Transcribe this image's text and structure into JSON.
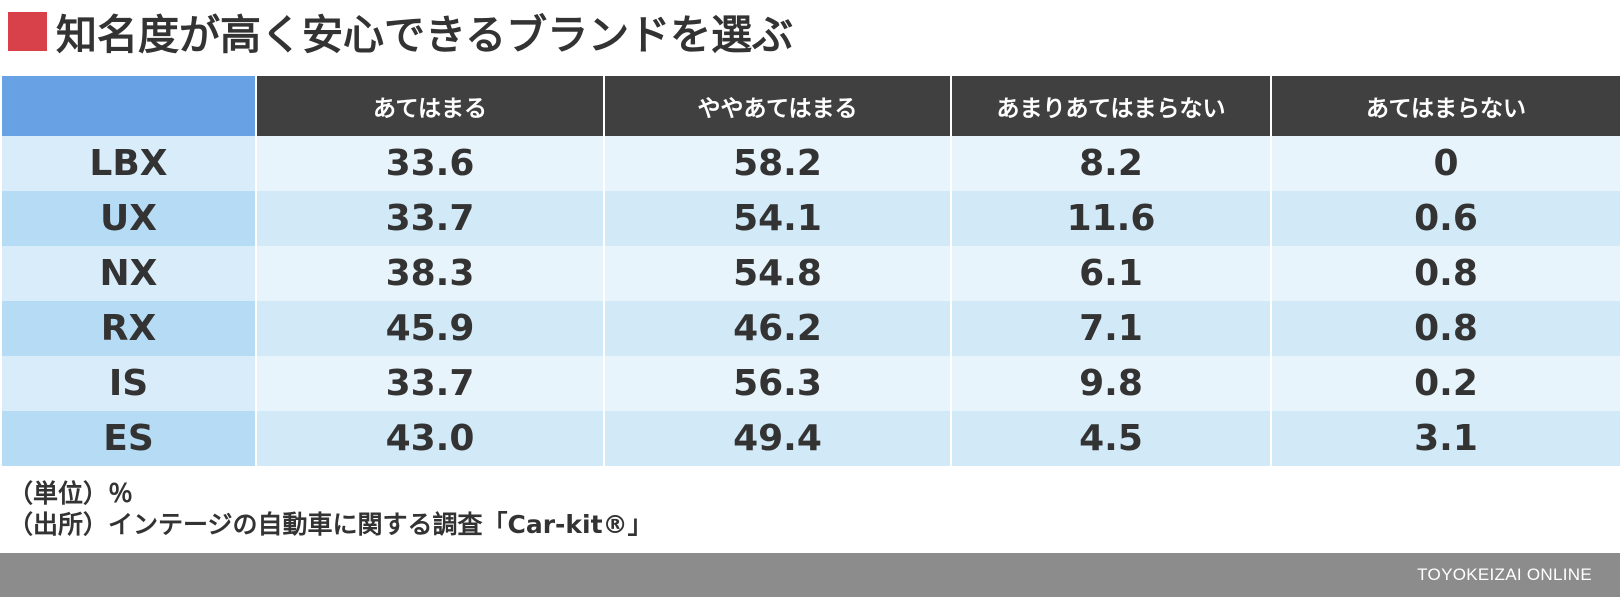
{
  "title": "知名度が高く安心できるブランドを選ぶ",
  "colors": {
    "title_accent": "#d9414a",
    "header_bg": "#404040",
    "corner_bg": "#68a2e4",
    "row_light": "#e8f4fb",
    "row_dark": "#d2eaf8",
    "footer_bg": "#8c8c8c"
  },
  "chart_data": {
    "type": "table",
    "columns": [
      "",
      "あてはまる",
      "ややあてはまる",
      "あまりあてはまらない",
      "あてはまらない"
    ],
    "rows": [
      {
        "label": "LBX",
        "values": [
          "33.6",
          "58.2",
          "8.2",
          "0"
        ]
      },
      {
        "label": "UX",
        "values": [
          "33.7",
          "54.1",
          "11.6",
          "0.6"
        ]
      },
      {
        "label": "NX",
        "values": [
          "38.3",
          "54.8",
          "6.1",
          "0.8"
        ]
      },
      {
        "label": "RX",
        "values": [
          "45.9",
          "46.2",
          "7.1",
          "0.8"
        ]
      },
      {
        "label": "IS",
        "values": [
          "33.7",
          "56.3",
          "9.8",
          "0.2"
        ]
      },
      {
        "label": "ES",
        "values": [
          "43.0",
          "49.4",
          "4.5",
          "3.1"
        ]
      }
    ]
  },
  "notes": {
    "unit": "（単位）％",
    "source": "（出所）インテージの自動車に関する調査「Car-kit®」"
  },
  "footer": {
    "brand": "TOYOKEIZAI ONLINE"
  }
}
